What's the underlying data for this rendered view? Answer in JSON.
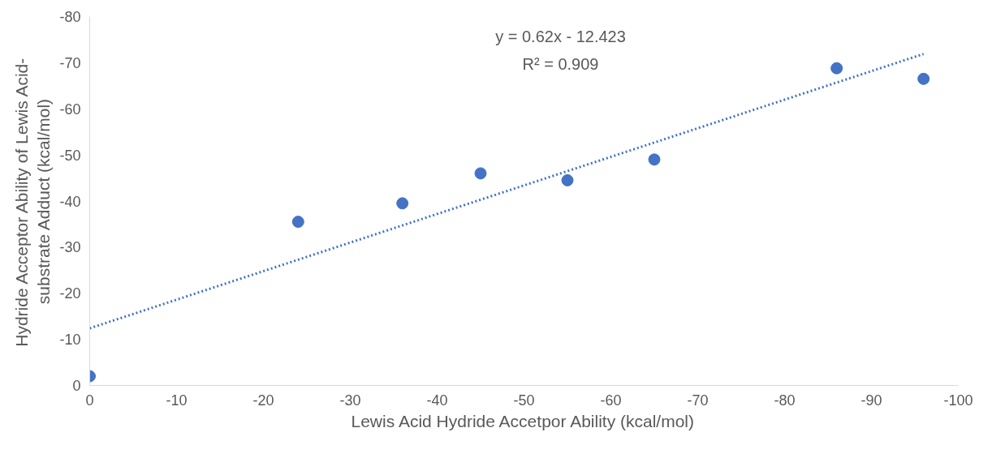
{
  "chart_data": {
    "type": "scatter",
    "xlabel": "Lewis Acid Hydride Accetpor Ability (kcal/mol)",
    "ylabel": "Hydride Acceptor Ability of Lewis Acid-\nsubstrate Adduct (kcal/mol)",
    "x": [
      0,
      -24,
      -36,
      -45,
      -55,
      -65,
      -86,
      -96
    ],
    "series": [
      {
        "color": "#4472c4",
        "values": [
          -2,
          -35.5,
          -39.5,
          -46,
          -44.5,
          -49,
          -68.8,
          -66.5
        ],
        "marker": "circle"
      },
      {
        "type": "line",
        "color": "#4472c4",
        "x": [
          0,
          -96
        ],
        "values": [
          -12.4,
          -71.9
        ],
        "line_style": "dotted"
      }
    ],
    "annotations": [
      "y = 0.62x - 12.423",
      "R² = 0.909"
    ],
    "xlim": [
      0,
      -100
    ],
    "ylim": [
      0,
      -80
    ],
    "xticks": [
      0,
      -10,
      -20,
      -30,
      -40,
      -50,
      -60,
      -70,
      -80,
      -90,
      -100
    ],
    "yticks": [
      0,
      -10,
      -20,
      -30,
      -40,
      -50,
      -60,
      -70,
      -80
    ],
    "grid": false
  }
}
